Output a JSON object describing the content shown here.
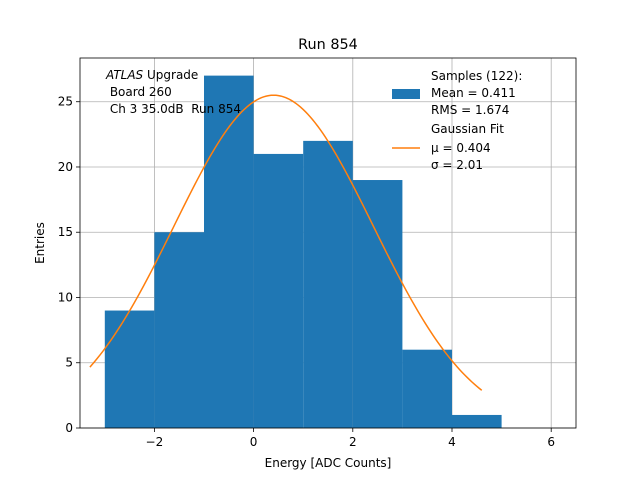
{
  "chart_data": {
    "type": "bar",
    "title": "Run 854",
    "xlabel": "Energy [ADC Counts]",
    "ylabel": "Entries",
    "xlim": [
      -3.5,
      6.5
    ],
    "ylim": [
      0,
      28.35
    ],
    "xticks": [
      -2,
      0,
      2,
      4,
      6
    ],
    "xtick_labels": [
      "−2",
      "0",
      "2",
      "4",
      "6"
    ],
    "yticks": [
      0,
      5,
      10,
      15,
      20,
      25
    ],
    "ytick_labels": [
      "0",
      "5",
      "10",
      "15",
      "20",
      "25"
    ],
    "grid": true,
    "bin_edges": [
      -3,
      -2,
      -1,
      0,
      1,
      2,
      3,
      4,
      5
    ],
    "values": [
      9,
      15,
      27,
      21,
      22,
      19,
      6,
      1
    ],
    "bar_color": "#1f77b4",
    "fit": {
      "mu": 0.404,
      "sigma": 2.01,
      "amplitude": 25.5,
      "x_range": [
        -3.3,
        4.6
      ],
      "color": "#ff7f0e"
    },
    "annotation": {
      "line1_italic": "ATLAS",
      "line1_rest": " Upgrade",
      "line2": " Board 260",
      "line3": " Ch 3 35.0dB  Run 854"
    },
    "legend": {
      "position": "top-right",
      "samples_title": "Samples (122):",
      "samples_mean": "Mean = 0.411",
      "samples_rms": "RMS = 1.674",
      "fit_title": "Gaussian Fit",
      "fit_mu": "μ = 0.404",
      "fit_sigma": "σ = 2.01"
    }
  }
}
